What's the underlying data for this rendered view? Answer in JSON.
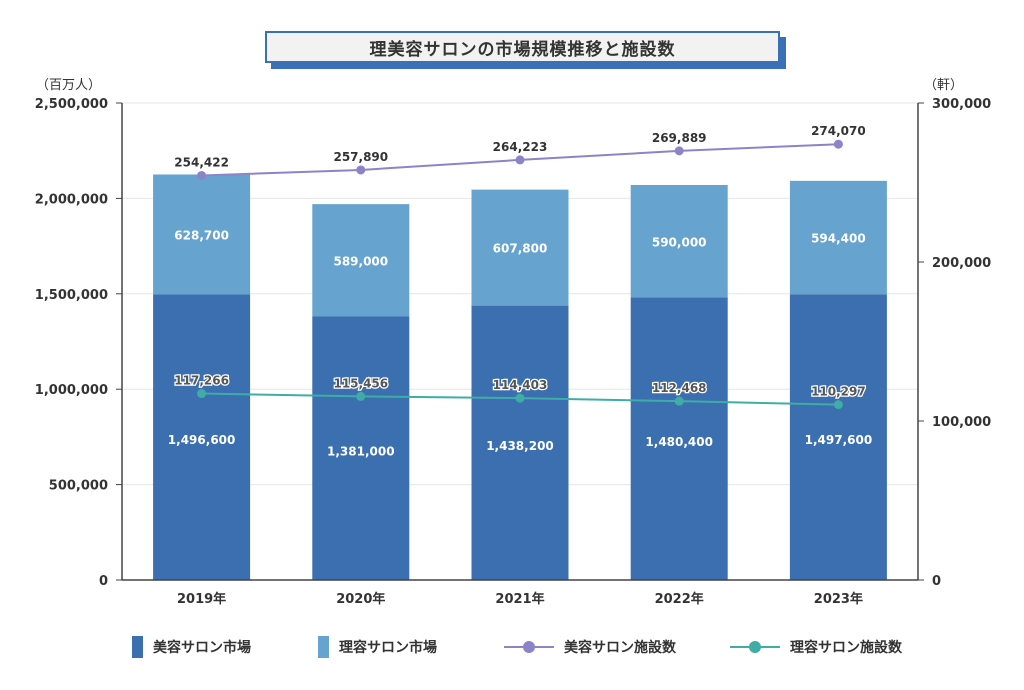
{
  "chart_data": {
    "type": "bar",
    "title": "理美容サロンの市場規模推移と施設数",
    "categories": [
      "2019年",
      "2020年",
      "2021年",
      "2022年",
      "2023年"
    ],
    "left_axis": {
      "unit": "（百万人）",
      "ylim": [
        0,
        2500000
      ],
      "ticks": [
        "0",
        "500,000",
        "1,000,000",
        "1,500,000",
        "2,000,000",
        "2,500,000"
      ]
    },
    "right_axis": {
      "unit": "（軒）",
      "ylim": [
        0,
        300000
      ],
      "ticks": [
        "0",
        "100,000",
        "200,000",
        "300,000"
      ]
    },
    "bar_series": [
      {
        "name": "美容サロン市場",
        "color": "#3b6fb0",
        "values": [
          1496600,
          1381000,
          1438200,
          1480400,
          1497600
        ],
        "labels": [
          "1,496,600",
          "1,381,000",
          "1,438,200",
          "1,480,400",
          "1,497,600"
        ]
      },
      {
        "name": "理容サロン市場",
        "color": "#67a3cf",
        "values": [
          628700,
          589000,
          607800,
          590000,
          594400
        ],
        "labels": [
          "628,700",
          "589,000",
          "607,800",
          "590,000",
          "594,400"
        ]
      }
    ],
    "line_series": [
      {
        "name": "美容サロン施設数",
        "color": "#8b84c9",
        "axis": "right",
        "values": [
          254422,
          257890,
          264223,
          269889,
          274070
        ],
        "labels": [
          "254,422",
          "257,890",
          "264,223",
          "269,889",
          "274,070"
        ]
      },
      {
        "name": "理容サロン施設数",
        "color": "#3fada6",
        "axis": "right",
        "values": [
          117266,
          115456,
          114403,
          112468,
          110297
        ],
        "labels": [
          "117,266",
          "115,456",
          "114,403",
          "112,468",
          "110,297"
        ]
      }
    ],
    "grid": true,
    "legend": "bottom"
  }
}
